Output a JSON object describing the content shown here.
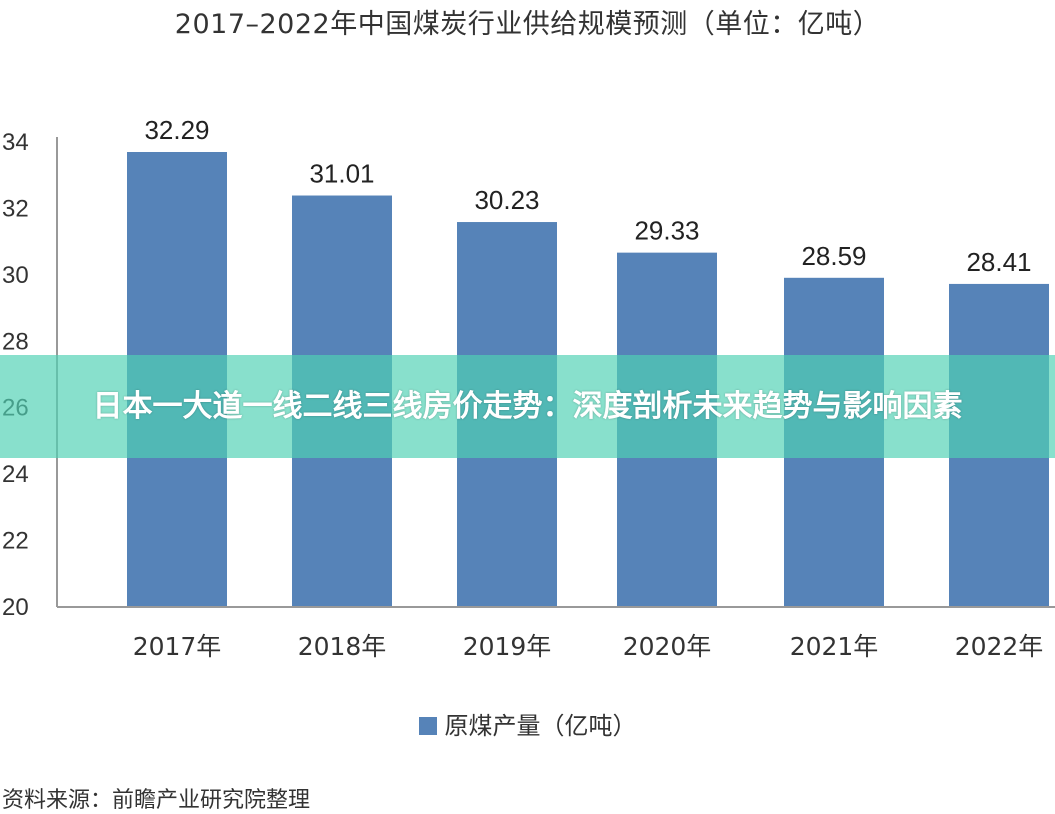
{
  "chart_data": {
    "type": "bar",
    "title": "2017–2022年中国煤炭行业供给规模预测（单位：亿吨）",
    "categories": [
      "2017年",
      "2018年",
      "2019年",
      "2020年",
      "2021年",
      "2022年"
    ],
    "series": [
      {
        "name": "原煤产量（亿吨）",
        "values": [
          32.29,
          31.01,
          30.23,
          29.33,
          28.59,
          28.41
        ]
      }
    ],
    "data_labels": [
      "32.29",
      "31.01",
      "30.23",
      "29.33",
      "28.59",
      "28.41"
    ],
    "yticks": [
      "20",
      "22",
      "24",
      "26",
      "28",
      "30",
      "32",
      "34"
    ],
    "ylim": [
      20,
      34
    ],
    "grid": false,
    "legend": "bottom",
    "bar_color": "#5683b8"
  },
  "source": "资料来源：前瞻产业研究院整理",
  "banner": {
    "text": "日本一大道一线二线三线房价走势：深度剖析未来趋势与影响因素",
    "color": "#50d2b4"
  }
}
